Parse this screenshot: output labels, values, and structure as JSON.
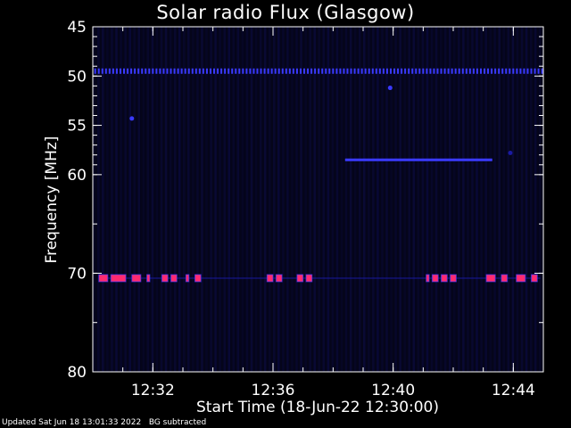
{
  "footer": {
    "updated": "Updated Sat Jun 18 13:01:33 2022",
    "note": "BG subtracted"
  },
  "colors": {
    "background": "#000000",
    "plot_background": "#05051a",
    "axis": "#ffffff",
    "low_signal": "#1a1aa0",
    "mid_signal": "#3a3aff",
    "high_signal": "#ff2a70"
  },
  "chart_data": {
    "type": "heatmap",
    "title": "Solar radio Flux (Glasgow)",
    "xlabel": "Start Time (18-Jun-22 12:30:00)",
    "ylabel": "Frequency [MHz]",
    "x_unit": "minutes after 12:30",
    "xlim": [
      0,
      15
    ],
    "ylim": [
      45,
      80
    ],
    "y_scale": "inverted (low frequency at top)",
    "grid": false,
    "x_ticks": [
      {
        "value": 2,
        "label": "12:32"
      },
      {
        "value": 6,
        "label": "12:36"
      },
      {
        "value": 10,
        "label": "12:40"
      },
      {
        "value": 14,
        "label": "12:44"
      }
    ],
    "y_ticks": [
      {
        "value": 45,
        "label": "45"
      },
      {
        "value": 50,
        "label": "50"
      },
      {
        "value": 55,
        "label": "55"
      },
      {
        "value": 60,
        "label": "60"
      },
      {
        "value": 70,
        "label": "70"
      },
      {
        "value": 80,
        "label": "80"
      }
    ],
    "features": [
      {
        "name": "interference line",
        "frequency_mhz": 49.5,
        "x_start": 0,
        "x_end": 15,
        "pattern": "dashed",
        "intensity": "mid"
      },
      {
        "name": "interference line",
        "frequency_mhz": 58.5,
        "x_start": 8.4,
        "x_end": 13.3,
        "pattern": "solid",
        "intensity": "mid"
      },
      {
        "name": "interference line",
        "frequency_mhz": 70.5,
        "x_start": 0.2,
        "x_end": 14.9,
        "pattern": "dashed",
        "intensity": "high"
      },
      {
        "name": "spot",
        "frequency_mhz": 54.3,
        "x": 1.3,
        "intensity": "mid"
      },
      {
        "name": "spot",
        "frequency_mhz": 51.2,
        "x": 9.9,
        "intensity": "mid"
      },
      {
        "name": "spot",
        "frequency_mhz": 57.8,
        "x": 13.9,
        "intensity": "low"
      }
    ],
    "high_segments_70mhz": [
      [
        0.2,
        0.5
      ],
      [
        0.6,
        1.1
      ],
      [
        1.3,
        1.6
      ],
      [
        1.8,
        1.9
      ],
      [
        2.3,
        2.5
      ],
      [
        2.6,
        2.8
      ],
      [
        3.1,
        3.2
      ],
      [
        3.4,
        3.6
      ],
      [
        5.8,
        6.0
      ],
      [
        6.1,
        6.3
      ],
      [
        6.8,
        7.0
      ],
      [
        7.1,
        7.3
      ],
      [
        11.1,
        11.2
      ],
      [
        11.3,
        11.5
      ],
      [
        11.6,
        11.8
      ],
      [
        11.9,
        12.1
      ],
      [
        13.1,
        13.4
      ],
      [
        13.6,
        13.8
      ],
      [
        14.1,
        14.4
      ],
      [
        14.6,
        14.8
      ]
    ]
  }
}
